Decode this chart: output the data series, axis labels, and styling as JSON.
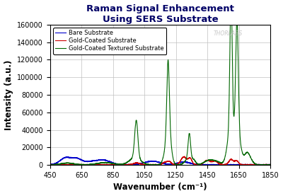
{
  "title_line1": "Raman Signal Enhancement",
  "title_line2": "Using SERS Substrate",
  "xlabel": "Wavenumber (cm⁻¹)",
  "ylabel": "Intensity (a.u.)",
  "xlim": [
    450,
    1850
  ],
  "ylim": [
    0,
    160000
  ],
  "xticks": [
    450,
    650,
    850,
    1050,
    1250,
    1450,
    1650,
    1850
  ],
  "yticks": [
    0,
    20000,
    40000,
    60000,
    80000,
    100000,
    120000,
    140000,
    160000
  ],
  "background_color": "#ffffff",
  "grid_color": "#c0c0c0",
  "legend": [
    "Bare Substrate",
    "Gold-Coated Substrate",
    "Gold-Coated Textured Substrate"
  ],
  "line_colors": [
    "#0000cc",
    "#cc0000",
    "#006600"
  ],
  "thorlabs_text": "THORLABS",
  "thorlabs_x": 1490,
  "thorlabs_y": 148000,
  "title_color": "#000066"
}
